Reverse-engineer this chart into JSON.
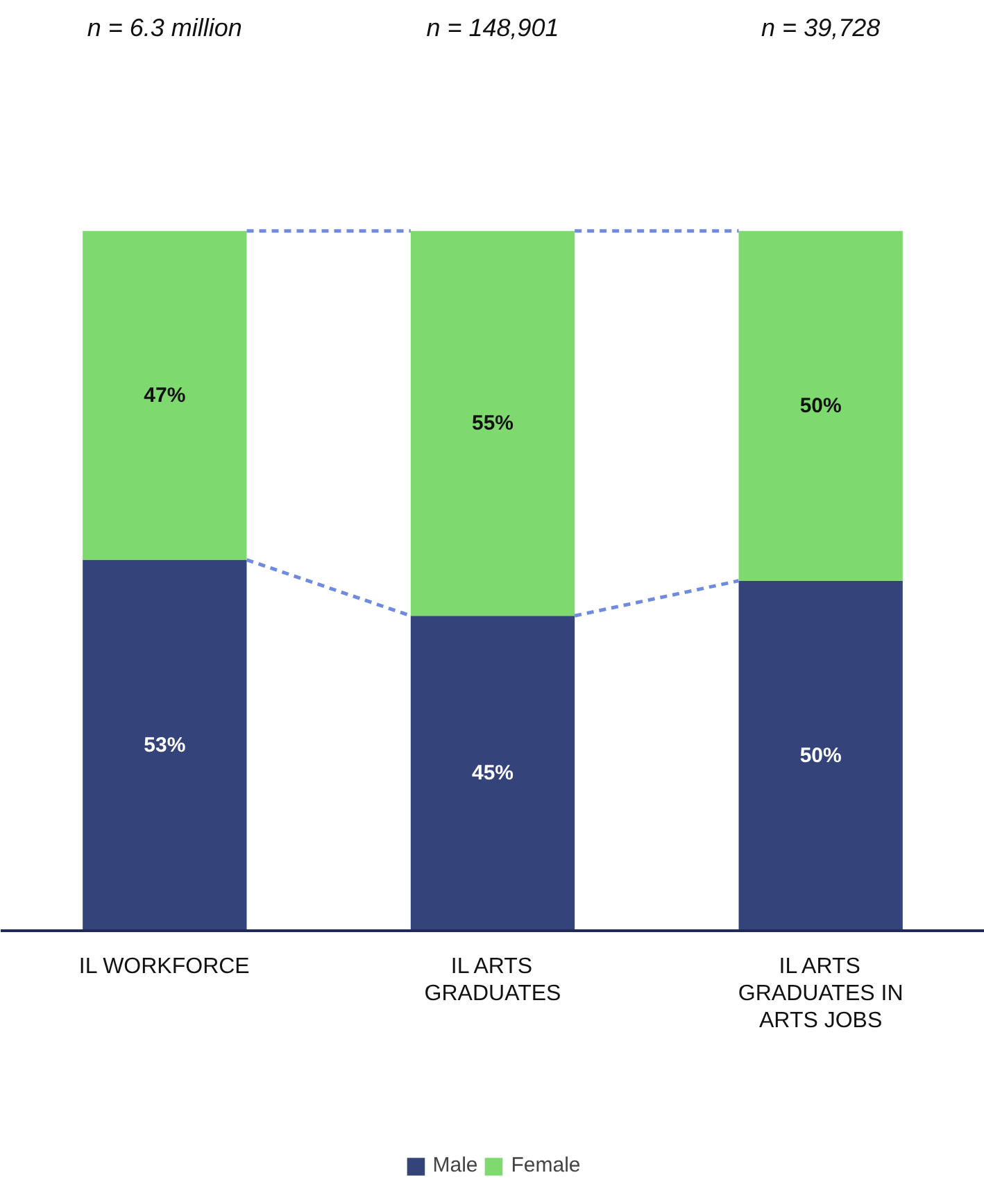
{
  "chart_data": {
    "type": "bar",
    "stacked": true,
    "categories": [
      "IL WORKFORCE",
      "IL ARTS GRADUATES",
      "IL ARTS GRADUATES IN ARTS JOBS"
    ],
    "series": [
      {
        "name": "Male",
        "color": "#34437a",
        "values": [
          53,
          45,
          50
        ],
        "value_labels": [
          "53%",
          "45%",
          "50%"
        ]
      },
      {
        "name": "Female",
        "color": "#7ed96f",
        "values": [
          47,
          55,
          50
        ],
        "value_labels": [
          "47%",
          "55%",
          "50%"
        ]
      }
    ],
    "legend": "bottom",
    "grid": false,
    "annotations": [
      "n = 6.3 million",
      "n = 148,901",
      "n = 39,728"
    ]
  }
}
